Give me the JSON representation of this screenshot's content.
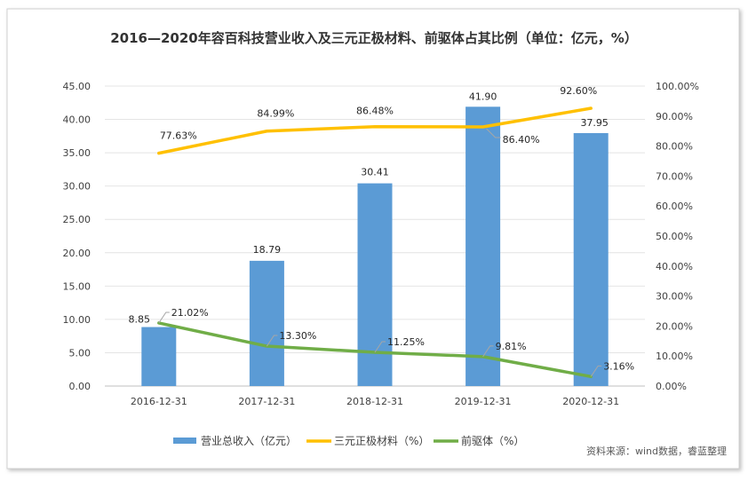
{
  "chart_data": {
    "type": "bar",
    "title": "2016—2020年容百科技营业收入及三元正极材料、前驱体占其比例（单位：亿元，%）",
    "categories": [
      "2016-12-31",
      "2017-12-31",
      "2018-12-31",
      "2019-12-31",
      "2020-12-31"
    ],
    "y_left": {
      "min": 0,
      "max": 45,
      "step": 5,
      "ticks": [
        "0.00",
        "5.00",
        "10.00",
        "15.00",
        "20.00",
        "25.00",
        "30.00",
        "35.00",
        "40.00",
        "45.00"
      ]
    },
    "y_right": {
      "min": 0,
      "max": 100,
      "step": 10,
      "ticks": [
        "0.00%",
        "10.00%",
        "20.00%",
        "30.00%",
        "40.00%",
        "50.00%",
        "60.00%",
        "70.00%",
        "80.00%",
        "90.00%",
        "100.00%"
      ]
    },
    "series": [
      {
        "name": "营业总收入（亿元）",
        "type": "bar",
        "axis": "left",
        "color": "#5b9bd5",
        "values": [
          8.85,
          18.79,
          30.41,
          41.9,
          37.95
        ],
        "labels": [
          "8.85",
          "18.79",
          "30.41",
          "41.90",
          "37.95"
        ]
      },
      {
        "name": "三元正极材料（%）",
        "type": "line",
        "axis": "right",
        "color": "#ffc000",
        "values": [
          77.63,
          84.99,
          86.48,
          86.4,
          92.6
        ],
        "labels": [
          "77.63%",
          "84.99%",
          "86.48%",
          "86.40%",
          "92.60%"
        ]
      },
      {
        "name": "前驱体（%）",
        "type": "line",
        "axis": "right",
        "color": "#70ad47",
        "values": [
          21.02,
          13.3,
          11.25,
          9.81,
          3.16
        ],
        "labels": [
          "21.02%",
          "13.30%",
          "11.25%",
          "9.81%",
          "3.16%"
        ]
      }
    ],
    "legend": "bottom",
    "grid": true
  },
  "source_note": "资料来源：wind数据，睿蓝整理"
}
